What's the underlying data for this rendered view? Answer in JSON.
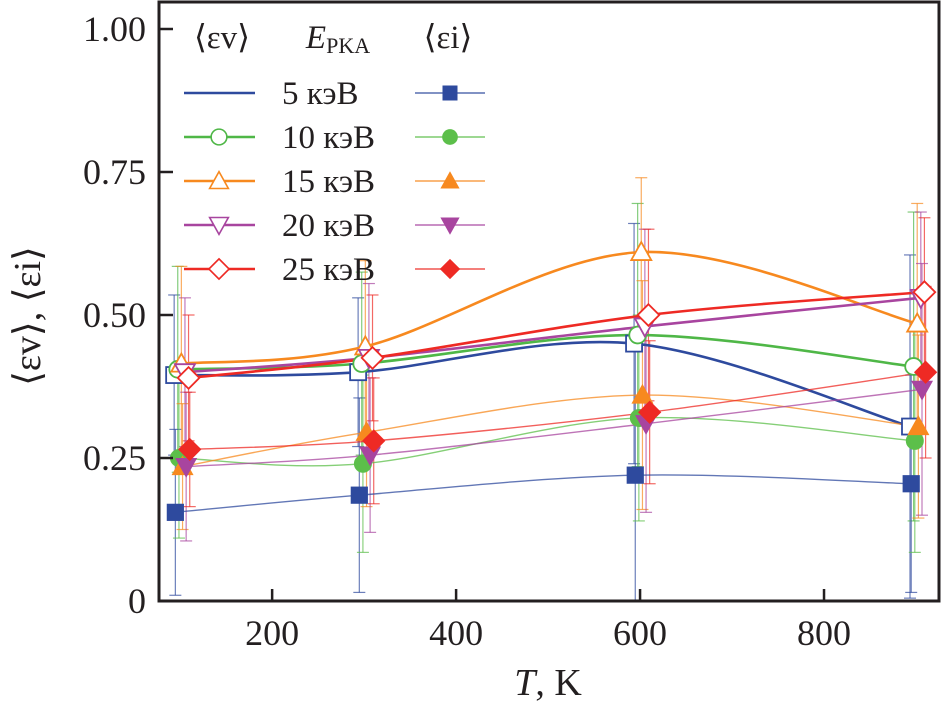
{
  "chart_data": {
    "type": "line",
    "title": "",
    "xlabel": "T, K",
    "xlabel_italic_part": "T",
    "xlabel_rest": ", K",
    "ylabel": "⟨εv⟩, ⟨εi⟩",
    "xlim": [
      77,
      925
    ],
    "ylim": [
      0,
      1.05
    ],
    "x_ticks": [
      200,
      400,
      600,
      800
    ],
    "x_tick_labels": [
      "200",
      "400",
      "600",
      "800"
    ],
    "y_ticks": [
      0,
      0.25,
      0.5,
      0.75,
      1.0
    ],
    "y_tick_labels": [
      "0",
      "0.25",
      "0.50",
      "0.75",
      "1.00"
    ],
    "grid": false,
    "legend_position": "top-left",
    "legend": {
      "header_left": "⟨εv⟩",
      "header_mid_main": "E",
      "header_mid_sub": "PKA",
      "header_right": "⟨εi⟩",
      "entries": [
        "5 кэВ",
        "10 кэВ",
        "15 кэВ",
        "20 кэВ",
        "25 кэВ"
      ]
    },
    "x": [
      100,
      300,
      600,
      900
    ],
    "series": [
      {
        "name": "⟨εv⟩ 5 кэВ",
        "group": "v",
        "energy": "5 кэВ",
        "color": "#2e4a9e",
        "marker": "square",
        "filled": false,
        "values": [
          0.395,
          0.4,
          0.45,
          0.305
        ],
        "err": [
          0.14,
          0.13,
          0.21,
          0.3
        ]
      },
      {
        "name": "⟨εv⟩ 10 кэВ",
        "group": "v",
        "energy": "10 кэВ",
        "color": "#4fb747",
        "marker": "circle",
        "filled": false,
        "values": [
          0.405,
          0.415,
          0.465,
          0.41
        ],
        "err": [
          0.18,
          0.16,
          0.23,
          0.27
        ]
      },
      {
        "name": "⟨εv⟩ 15 кэВ",
        "group": "v",
        "energy": "15 кэВ",
        "color": "#f7891f",
        "marker": "triangle-up",
        "filled": false,
        "values": [
          0.415,
          0.445,
          0.61,
          0.485
        ],
        "err": [
          0.17,
          0.15,
          0.13,
          0.21
        ]
      },
      {
        "name": "⟨εv⟩ 20 кэВ",
        "group": "v",
        "energy": "20 кэВ",
        "color": "#a8459f",
        "marker": "triangle-down",
        "filled": false,
        "values": [
          0.4,
          0.425,
          0.48,
          0.53
        ],
        "err": [
          0.13,
          0.13,
          0.17,
          0.15
        ]
      },
      {
        "name": "⟨εv⟩ 25 кэВ",
        "group": "v",
        "energy": "25 кэВ",
        "color": "#ee2a24",
        "marker": "diamond",
        "filled": false,
        "values": [
          0.39,
          0.425,
          0.5,
          0.54
        ],
        "err": [
          0.11,
          0.11,
          0.15,
          0.13
        ]
      },
      {
        "name": "⟨εi⟩ 5 кэВ",
        "group": "i",
        "energy": "5 кэВ",
        "color": "#2e4a9e",
        "marker": "square",
        "filled": true,
        "values": [
          0.155,
          0.185,
          0.22,
          0.205
        ],
        "err": [
          0.145,
          0.17,
          0.22,
          0.19
        ]
      },
      {
        "name": "⟨εi⟩ 10 кэВ",
        "group": "i",
        "energy": "10 кэВ",
        "color": "#5cbf4a",
        "marker": "circle",
        "filled": true,
        "values": [
          0.25,
          0.24,
          0.32,
          0.28
        ],
        "err": [
          0.14,
          0.155,
          0.18,
          0.195
        ]
      },
      {
        "name": "⟨εi⟩ 15 кэВ",
        "group": "i",
        "energy": "15 кэВ",
        "color": "#f7891f",
        "marker": "triangle-up",
        "filled": true,
        "values": [
          0.235,
          0.295,
          0.36,
          0.305
        ],
        "err": [
          0.11,
          0.13,
          0.2,
          0.16
        ]
      },
      {
        "name": "⟨εi⟩ 20 кэВ",
        "group": "i",
        "energy": "20 кэВ",
        "color": "#a8459f",
        "marker": "triangle-down",
        "filled": true,
        "values": [
          0.235,
          0.255,
          0.31,
          0.37
        ],
        "err": [
          0.13,
          0.135,
          0.155,
          0.22
        ]
      },
      {
        "name": "⟨εi⟩ 25 кэВ",
        "group": "i",
        "energy": "25 кэВ",
        "color": "#ee2a24",
        "marker": "diamond",
        "filled": true,
        "values": [
          0.265,
          0.28,
          0.33,
          0.4
        ],
        "err": [
          0.1,
          0.11,
          0.125,
          0.15
        ]
      }
    ]
  }
}
